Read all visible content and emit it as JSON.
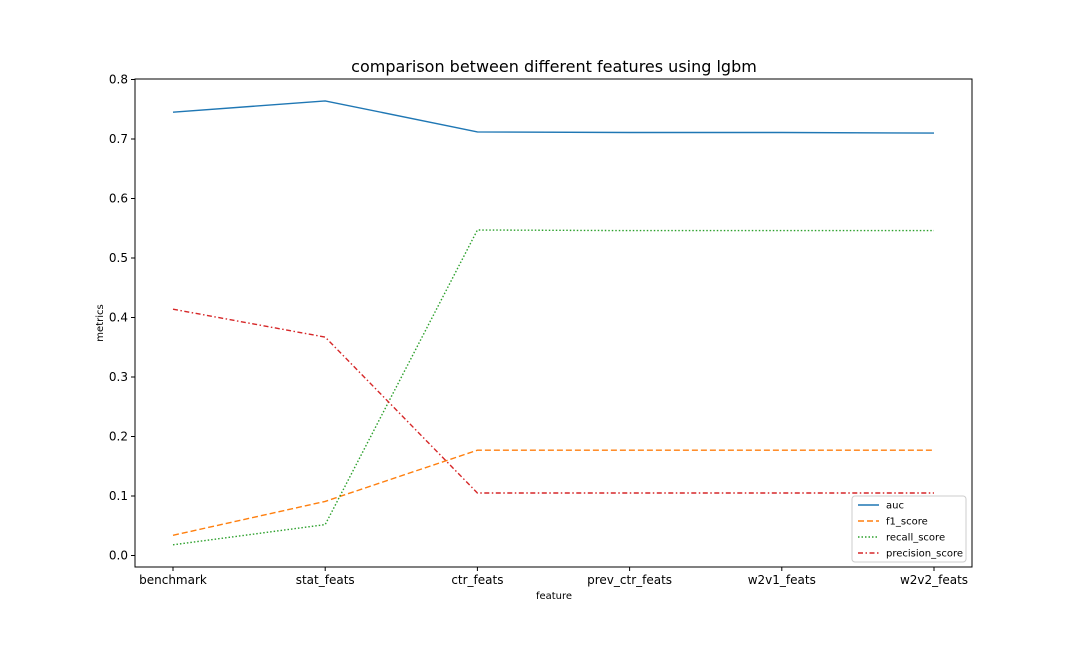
{
  "chart_data": {
    "type": "line",
    "title": "comparison between different features using lgbm",
    "xlabel": "feature",
    "ylabel": "metrics",
    "categories": [
      "benchmark",
      "stat_feats",
      "ctr_feats",
      "prev_ctr_feats",
      "w2v1_feats",
      "w2v2_feats"
    ],
    "ylim": [
      -0.02,
      0.8
    ],
    "yticks": [
      0.0,
      0.1,
      0.2,
      0.3,
      0.4,
      0.5,
      0.6,
      0.7,
      0.8
    ],
    "grid": false,
    "legend_position": "bottom-right",
    "series": [
      {
        "name": "auc",
        "color": "#1f77b4",
        "style": "solid",
        "values": [
          0.745,
          0.764,
          0.712,
          0.711,
          0.711,
          0.71
        ]
      },
      {
        "name": "f1_score",
        "color": "#ff7f0e",
        "style": "dashed",
        "values": [
          0.034,
          0.091,
          0.177,
          0.177,
          0.177,
          0.177
        ]
      },
      {
        "name": "recall_score",
        "color": "#2ca02c",
        "style": "dotted",
        "values": [
          0.018,
          0.052,
          0.547,
          0.546,
          0.546,
          0.546
        ]
      },
      {
        "name": "precision_score",
        "color": "#d62728",
        "style": "dashdot",
        "values": [
          0.414,
          0.367,
          0.105,
          0.105,
          0.105,
          0.105
        ]
      }
    ]
  }
}
